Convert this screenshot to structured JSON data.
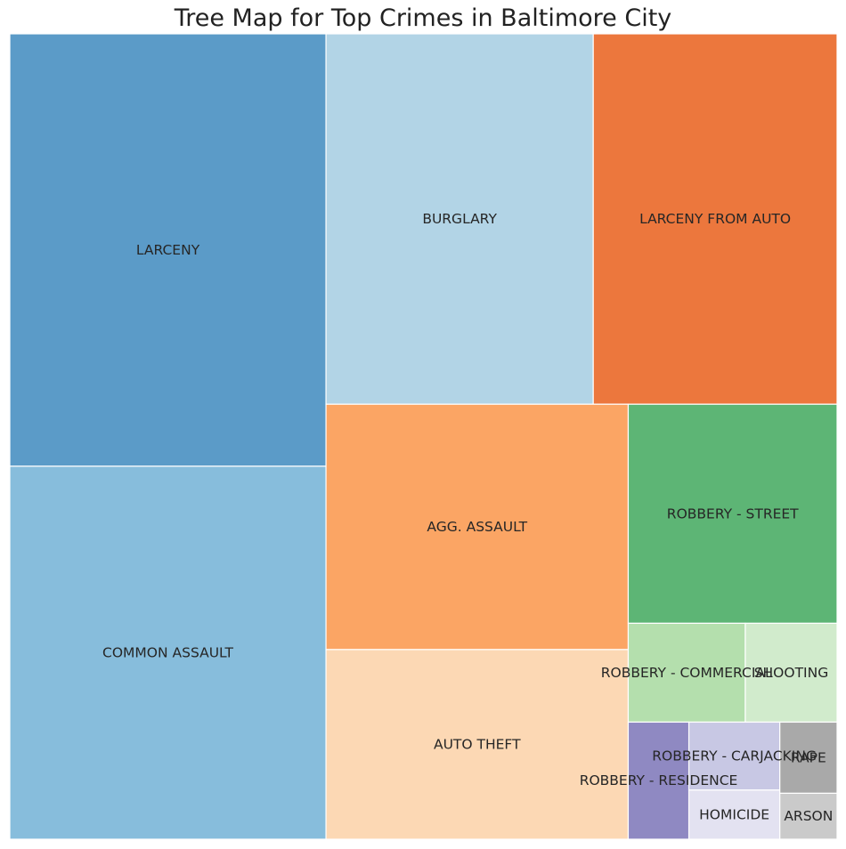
{
  "chart_data": {
    "type": "treemap",
    "title": "Tree Map for Top Crimes in Baltimore City",
    "series": [
      {
        "name": "LARCENY",
        "value": 104,
        "color": "#5b9bc8"
      },
      {
        "name": "COMMON ASSAULT",
        "value": 89.7,
        "color": "#87bddc"
      },
      {
        "name": "BURGLARY",
        "value": 75.3,
        "color": "#b2d4e6"
      },
      {
        "name": "LARCENY FROM AUTO",
        "value": 68.7,
        "color": "#ec773d"
      },
      {
        "name": "AGG. ASSAULT",
        "value": 56.4,
        "color": "#fba564"
      },
      {
        "name": "AUTO THEFT",
        "value": 43.6,
        "color": "#fcd8b4"
      },
      {
        "name": "ROBBERY - STREET",
        "value": 34.8,
        "color": "#5db575"
      },
      {
        "name": "ROBBERY - COMMERCIAL",
        "value": 8.8,
        "color": "#b4dfad"
      },
      {
        "name": "SHOOTING",
        "value": 6.9,
        "color": "#d1ebcc"
      },
      {
        "name": "ROBBERY - RESIDENCE",
        "value": 5.4,
        "color": "#8f89c2"
      },
      {
        "name": "ROBBERY - CARJACKING",
        "value": 4.7,
        "color": "#c8c8e4"
      },
      {
        "name": "HOMICIDE",
        "value": 3.4,
        "color": "#e3e2f1"
      },
      {
        "name": "RAPE",
        "value": 3.1,
        "color": "#a9a9a9"
      },
      {
        "name": "ARSON",
        "value": 2.0,
        "color": "#cacaca"
      }
    ]
  }
}
